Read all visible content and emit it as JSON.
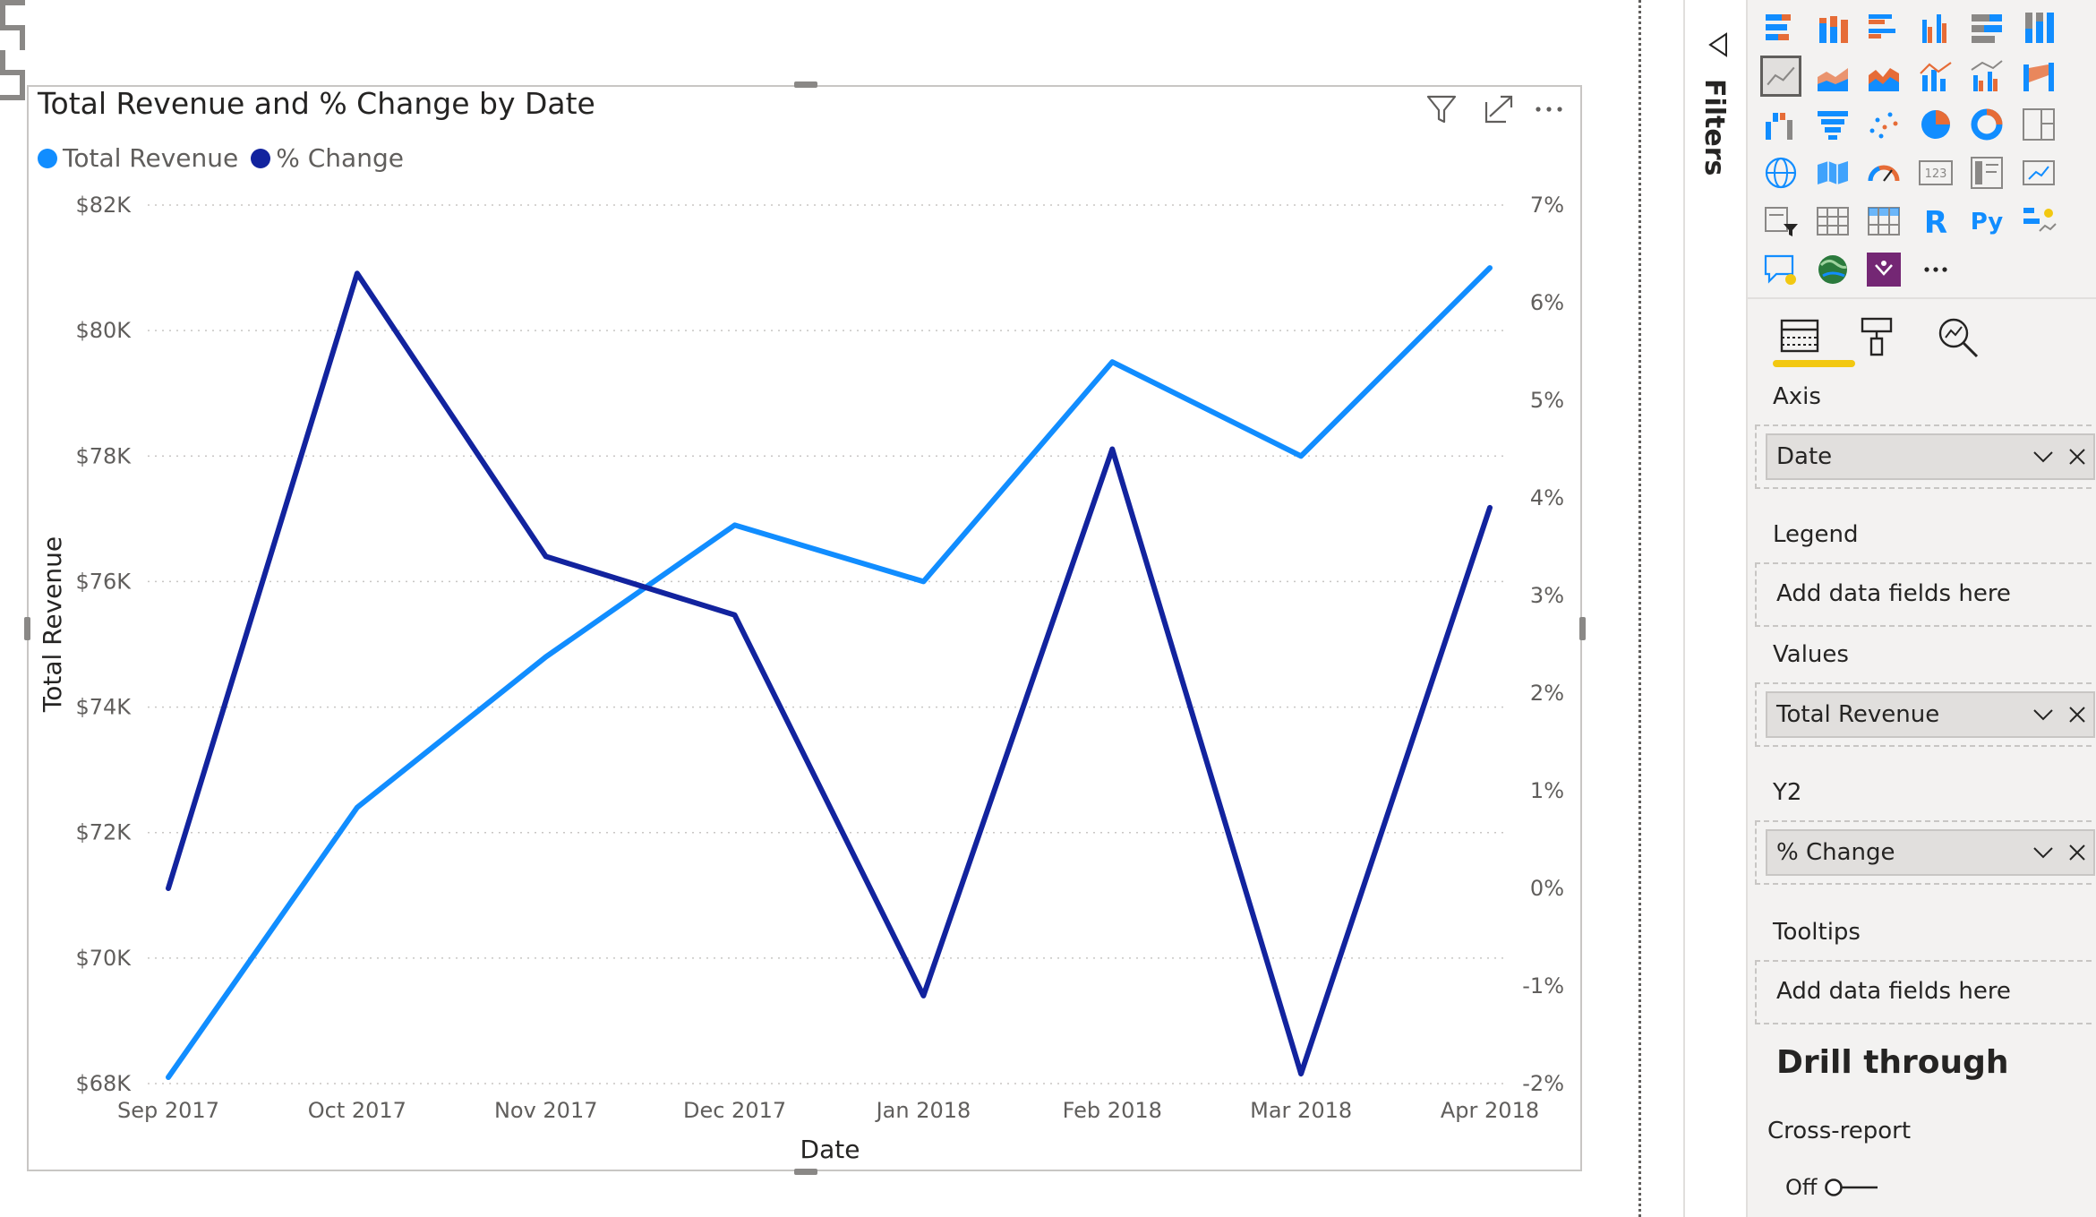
{
  "visual": {
    "title": "Total Revenue and % Change by Date",
    "header_icons": [
      "filter-icon",
      "focus-mode-icon",
      "more-options-icon"
    ],
    "legend": [
      {
        "name": "Total Revenue",
        "color": "#118dff"
      },
      {
        "name": "% Change",
        "color": "#12239e"
      }
    ]
  },
  "chart_data": {
    "type": "line",
    "title": "Total Revenue and % Change by Date",
    "xlabel": "Date",
    "ylabel": "Total Revenue",
    "y2label": "",
    "categories": [
      "Sep 2017",
      "Oct 2017",
      "Nov 2017",
      "Dec 2017",
      "Jan 2018",
      "Feb 2018",
      "Mar 2018",
      "Apr 2018"
    ],
    "series": [
      {
        "name": "Total Revenue",
        "axis": "y",
        "color": "#118dff",
        "values": [
          68100,
          72400,
          74800,
          76900,
          76000,
          79500,
          78000,
          81000
        ]
      },
      {
        "name": "% Change",
        "axis": "y2",
        "color": "#12239e",
        "values": [
          0.0,
          6.3,
          3.4,
          2.8,
          -1.1,
          4.5,
          -1.9,
          3.9
        ]
      }
    ],
    "ylim": [
      68000,
      82000
    ],
    "y2lim": [
      -2,
      7
    ],
    "y_ticks": [
      "$68K",
      "$70K",
      "$72K",
      "$74K",
      "$76K",
      "$78K",
      "$80K",
      "$82K"
    ],
    "y2_ticks": [
      "-2%",
      "-1%",
      "0%",
      "1%",
      "2%",
      "3%",
      "4%",
      "5%",
      "6%",
      "7%"
    ],
    "grid": true,
    "legend_position": "top-left"
  },
  "filters_pane": {
    "label": "Filters"
  },
  "viz_pane": {
    "icons": [
      "stacked-bar-chart-icon",
      "stacked-column-chart-icon",
      "clustered-bar-chart-icon",
      "clustered-column-chart-icon",
      "100-stacked-bar-chart-icon",
      "100-stacked-column-chart-icon",
      "line-chart-icon",
      "area-chart-icon",
      "stacked-area-chart-icon",
      "line-and-stacked-column-chart-icon",
      "line-and-clustered-column-chart-icon",
      "ribbon-chart-icon",
      "waterfall-chart-icon",
      "funnel-chart-icon",
      "scatter-chart-icon",
      "pie-chart-icon",
      "donut-chart-icon",
      "treemap-icon",
      "map-icon",
      "filled-map-icon",
      "gauge-icon",
      "card-icon",
      "multi-row-card-icon",
      "kpi-icon",
      "slicer-icon",
      "table-icon",
      "matrix-icon",
      "r-visual-icon",
      "python-visual-icon",
      "key-influencers-icon",
      "q-and-a-icon",
      "arcgis-map-icon",
      "power-apps-icon",
      "more-visuals-icon"
    ],
    "text_icons": {
      "r": "R",
      "py": "Py",
      "card": "123"
    },
    "tabs": [
      "fields-tab-icon",
      "format-tab-icon",
      "analytics-tab-icon"
    ],
    "wells": {
      "axis_label": "Axis",
      "axis_field": "Date",
      "legend_label": "Legend",
      "legend_placeholder": "Add data fields here",
      "values_label": "Values",
      "values_field": "Total Revenue",
      "y2_label": "Y2",
      "y2_field": "% Change",
      "tooltips_label": "Tooltips",
      "tooltips_placeholder": "Add data fields here"
    },
    "drill_through": {
      "title": "Drill through",
      "cross_report_label": "Cross-report",
      "toggle_state": "Off"
    }
  }
}
